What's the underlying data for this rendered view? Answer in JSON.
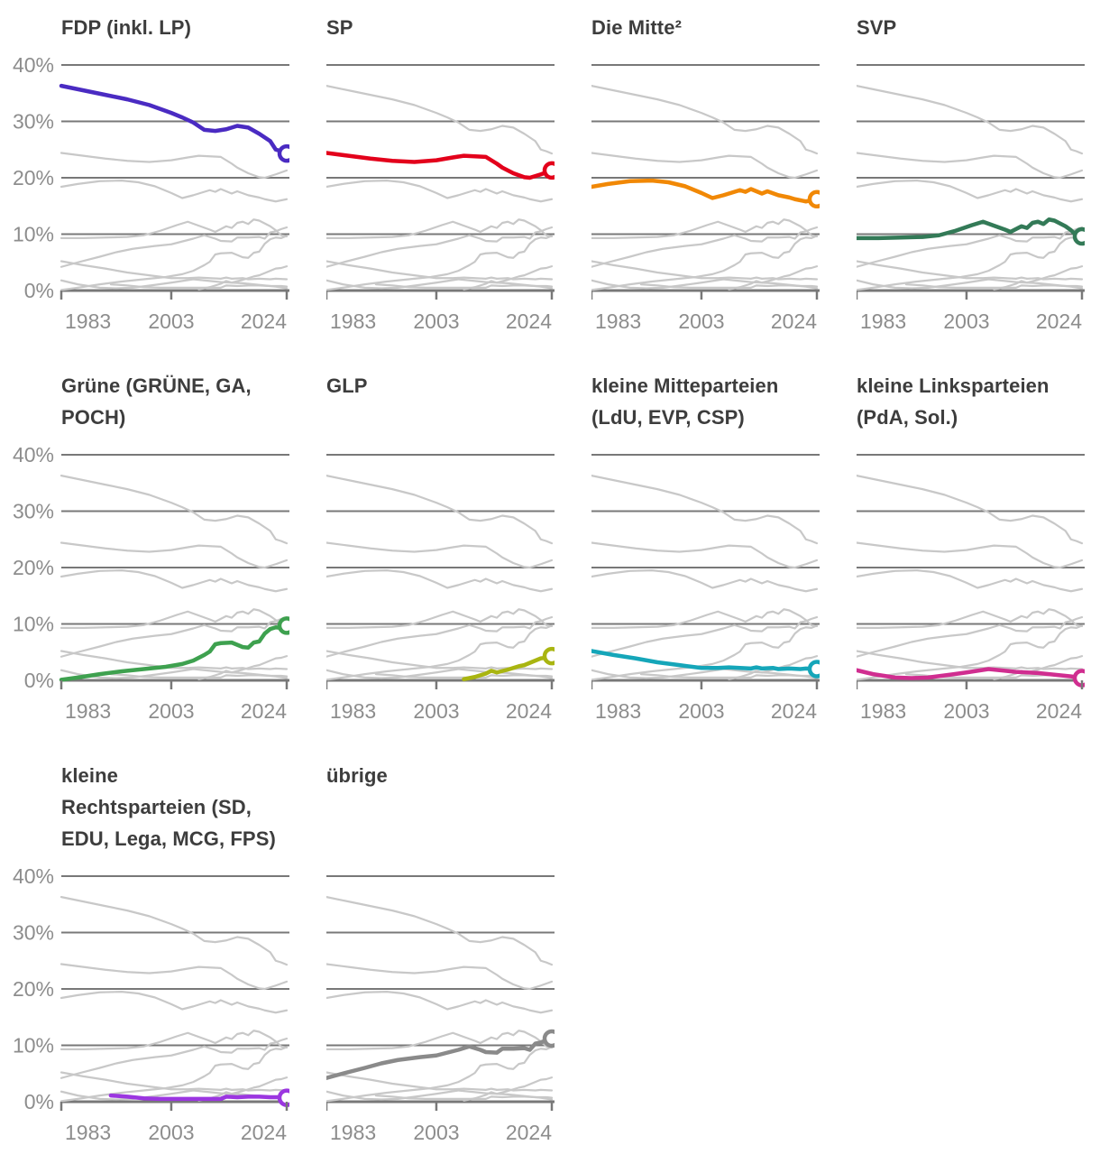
{
  "chart_data": {
    "type": "line",
    "unit": "%",
    "x_axis": {
      "tick_labels": [
        "1983",
        "2003",
        "2024"
      ],
      "tick_years": [
        1983,
        2003,
        2024
      ],
      "range": [
        1983,
        2024
      ]
    },
    "y_axis": {
      "tick_labels": [
        "40%",
        "30%",
        "20%",
        "10%",
        "0%"
      ],
      "tick_values": [
        40,
        30,
        20,
        10,
        0
      ],
      "ylim": [
        0,
        40
      ]
    },
    "layout_hints": {
      "grid": "horizontal gridlines at every 10%",
      "small_multiples": "each panel highlights one series; all other series shown muted gray",
      "endpoint": "open circle marker on last value of highlighted series",
      "y_labels_only_on_first_column": true
    },
    "series": [
      {
        "id": "fdp",
        "title_lines": [
          "FDP (inkl. LP)"
        ],
        "color": "#4a2bc2",
        "points": [
          [
            1983,
            36.3
          ],
          [
            1987,
            35.5
          ],
          [
            1991,
            34.7
          ],
          [
            1995,
            33.9
          ],
          [
            1999,
            32.9
          ],
          [
            2003,
            31.5
          ],
          [
            2005,
            30.7
          ],
          [
            2007,
            29.8
          ],
          [
            2009,
            28.5
          ],
          [
            2011,
            28.3
          ],
          [
            2013,
            28.6
          ],
          [
            2015,
            29.2
          ],
          [
            2017,
            28.9
          ],
          [
            2019,
            27.8
          ],
          [
            2021,
            26.5
          ],
          [
            2022,
            25.0
          ],
          [
            2023,
            24.7
          ],
          [
            2024,
            24.3
          ]
        ]
      },
      {
        "id": "sp",
        "title_lines": [
          "SP"
        ],
        "color": "#e3001b",
        "points": [
          [
            1983,
            24.4
          ],
          [
            1987,
            23.9
          ],
          [
            1991,
            23.4
          ],
          [
            1995,
            23.0
          ],
          [
            1999,
            22.8
          ],
          [
            2003,
            23.1
          ],
          [
            2006,
            23.6
          ],
          [
            2008,
            23.9
          ],
          [
            2010,
            23.8
          ],
          [
            2012,
            23.7
          ],
          [
            2014,
            22.5
          ],
          [
            2015,
            21.8
          ],
          [
            2017,
            20.8
          ],
          [
            2019,
            20.1
          ],
          [
            2020,
            20.0
          ],
          [
            2022,
            20.6
          ],
          [
            2024,
            21.3
          ]
        ]
      },
      {
        "id": "mitte",
        "title_lines": [
          "Die Mitte²"
        ],
        "color": "#f18805",
        "points": [
          [
            1983,
            18.4
          ],
          [
            1986,
            18.9
          ],
          [
            1990,
            19.4
          ],
          [
            1994,
            19.5
          ],
          [
            1997,
            19.2
          ],
          [
            2000,
            18.5
          ],
          [
            2003,
            17.3
          ],
          [
            2005,
            16.4
          ],
          [
            2007,
            16.9
          ],
          [
            2009,
            17.5
          ],
          [
            2010,
            17.8
          ],
          [
            2011,
            17.5
          ],
          [
            2012,
            18.0
          ],
          [
            2014,
            17.2
          ],
          [
            2015,
            17.6
          ],
          [
            2017,
            16.9
          ],
          [
            2019,
            16.5
          ],
          [
            2020,
            16.2
          ],
          [
            2022,
            15.8
          ],
          [
            2023,
            16.0
          ],
          [
            2024,
            16.2
          ]
        ]
      },
      {
        "id": "svp",
        "title_lines": [
          "SVP"
        ],
        "color": "#337a57",
        "points": [
          [
            1983,
            9.3
          ],
          [
            1987,
            9.3
          ],
          [
            1991,
            9.4
          ],
          [
            1995,
            9.5
          ],
          [
            1998,
            9.8
          ],
          [
            2001,
            10.6
          ],
          [
            2004,
            11.6
          ],
          [
            2006,
            12.2
          ],
          [
            2008,
            11.5
          ],
          [
            2010,
            10.8
          ],
          [
            2011,
            10.4
          ],
          [
            2013,
            11.4
          ],
          [
            2014,
            11.1
          ],
          [
            2015,
            12.0
          ],
          [
            2016,
            12.2
          ],
          [
            2017,
            11.8
          ],
          [
            2018,
            12.6
          ],
          [
            2019,
            12.4
          ],
          [
            2021,
            11.4
          ],
          [
            2022,
            10.7
          ],
          [
            2023,
            9.8
          ],
          [
            2024,
            9.6
          ]
        ]
      },
      {
        "id": "gruene",
        "title_lines": [
          "Grüne (GRÜNE, GA,",
          "POCH)"
        ],
        "color": "#3ea14f",
        "points": [
          [
            1983,
            0.1
          ],
          [
            1986,
            0.5
          ],
          [
            1990,
            1.1
          ],
          [
            1994,
            1.6
          ],
          [
            1998,
            2.0
          ],
          [
            2002,
            2.4
          ],
          [
            2005,
            2.9
          ],
          [
            2007,
            3.5
          ],
          [
            2009,
            4.5
          ],
          [
            2010,
            5.1
          ],
          [
            2011,
            6.4
          ],
          [
            2012,
            6.6
          ],
          [
            2014,
            6.7
          ],
          [
            2016,
            5.9
          ],
          [
            2017,
            5.8
          ],
          [
            2018,
            6.7
          ],
          [
            2019,
            6.9
          ],
          [
            2020,
            8.3
          ],
          [
            2021,
            9.1
          ],
          [
            2022,
            9.4
          ],
          [
            2023,
            9.3
          ],
          [
            2024,
            9.7
          ]
        ]
      },
      {
        "id": "glp",
        "title_lines": [
          "GLP"
        ],
        "color": "#a9b511",
        "points": [
          [
            2008,
            0.2
          ],
          [
            2010,
            0.6
          ],
          [
            2012,
            1.2
          ],
          [
            2013,
            1.7
          ],
          [
            2014,
            1.4
          ],
          [
            2016,
            1.9
          ],
          [
            2018,
            2.5
          ],
          [
            2019,
            2.7
          ],
          [
            2020,
            3.1
          ],
          [
            2022,
            3.9
          ],
          [
            2023,
            4.0
          ],
          [
            2024,
            4.3
          ]
        ]
      },
      {
        "id": "kleine_mitteparteien",
        "title_lines": [
          "kleine Mitteparteien",
          "(LdU, EVP, CSP)"
        ],
        "color": "#15a6b9",
        "points": [
          [
            1983,
            5.2
          ],
          [
            1987,
            4.5
          ],
          [
            1991,
            3.9
          ],
          [
            1995,
            3.2
          ],
          [
            1999,
            2.7
          ],
          [
            2003,
            2.2
          ],
          [
            2006,
            2.2
          ],
          [
            2008,
            2.3
          ],
          [
            2010,
            2.2
          ],
          [
            2012,
            2.1
          ],
          [
            2013,
            2.3
          ],
          [
            2014,
            2.1
          ],
          [
            2016,
            2.2
          ],
          [
            2017,
            2.0
          ],
          [
            2019,
            2.1
          ],
          [
            2021,
            2.0
          ],
          [
            2022,
            2.1
          ],
          [
            2024,
            2.0
          ]
        ]
      },
      {
        "id": "kleine_linksparteien",
        "title_lines": [
          "kleine Linksparteien",
          "(PdA, Sol.)"
        ],
        "color": "#d02e90",
        "points": [
          [
            1983,
            1.8
          ],
          [
            1986,
            1.1
          ],
          [
            1990,
            0.5
          ],
          [
            1993,
            0.4
          ],
          [
            1996,
            0.5
          ],
          [
            2000,
            1.0
          ],
          [
            2003,
            1.4
          ],
          [
            2005,
            1.7
          ],
          [
            2007,
            2.0
          ],
          [
            2009,
            1.8
          ],
          [
            2012,
            1.5
          ],
          [
            2014,
            1.4
          ],
          [
            2016,
            1.3
          ],
          [
            2018,
            1.1
          ],
          [
            2020,
            0.9
          ],
          [
            2022,
            0.7
          ],
          [
            2024,
            0.4
          ]
        ]
      },
      {
        "id": "kleine_rechtsparteien",
        "title_lines": [
          "kleine",
          "Rechtsparteien (SD,",
          "EDU, Lega, MCG, FPS)"
        ],
        "color": "#9b36e0",
        "points": [
          [
            1992,
            1.1
          ],
          [
            1995,
            0.9
          ],
          [
            1998,
            0.6
          ],
          [
            2001,
            0.5
          ],
          [
            2004,
            0.5
          ],
          [
            2007,
            0.5
          ],
          [
            2010,
            0.5
          ],
          [
            2012,
            0.5
          ],
          [
            2013,
            0.9
          ],
          [
            2015,
            0.8
          ],
          [
            2017,
            0.9
          ],
          [
            2019,
            0.9
          ],
          [
            2021,
            0.8
          ],
          [
            2023,
            0.8
          ],
          [
            2024,
            0.7
          ]
        ]
      },
      {
        "id": "uebrige",
        "title_lines": [
          "übrige"
        ],
        "color": "#8a8a8a",
        "points": [
          [
            1983,
            4.2
          ],
          [
            1986,
            5.0
          ],
          [
            1990,
            6.0
          ],
          [
            1993,
            6.8
          ],
          [
            1996,
            7.4
          ],
          [
            2000,
            7.9
          ],
          [
            2003,
            8.2
          ],
          [
            2005,
            8.7
          ],
          [
            2007,
            9.2
          ],
          [
            2009,
            9.8
          ],
          [
            2011,
            9.2
          ],
          [
            2012,
            8.8
          ],
          [
            2014,
            8.7
          ],
          [
            2015,
            9.4
          ],
          [
            2017,
            9.4
          ],
          [
            2019,
            9.5
          ],
          [
            2020,
            9.2
          ],
          [
            2021,
            10.3
          ],
          [
            2022,
            10.5
          ],
          [
            2023,
            10.9
          ],
          [
            2024,
            11.2
          ]
        ]
      }
    ]
  },
  "styles": {
    "background_color": "#ffffff",
    "grid_color": "#787878",
    "muted_line_color": "#c8c8c8",
    "axis_text_color": "#8d8d8d",
    "title_color": "#3d3d3d",
    "endpoint_fill": "#ffffff"
  }
}
